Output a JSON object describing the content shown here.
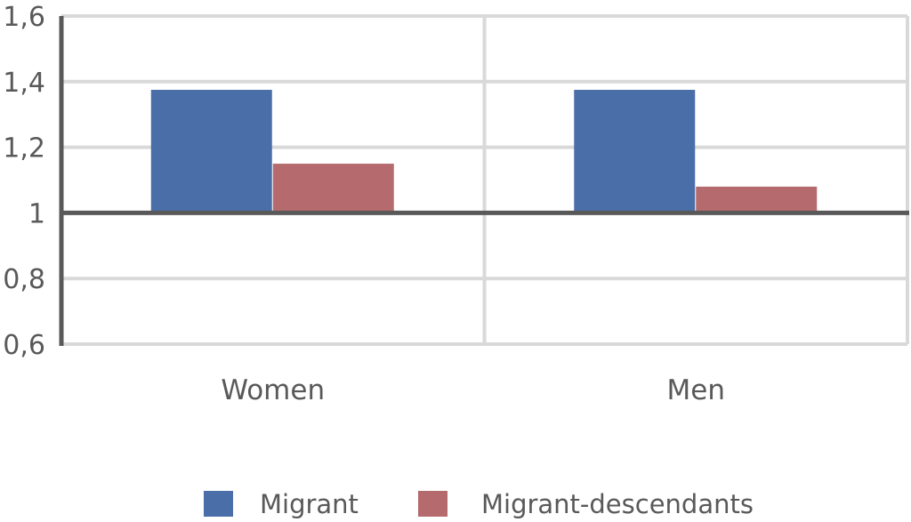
{
  "chart_data": {
    "type": "bar",
    "categories": [
      "Women",
      "Men"
    ],
    "series": [
      {
        "name": "Migrant",
        "values": [
          1.375,
          1.375
        ],
        "color": "#4a6ea8"
      },
      {
        "name": "Migrant-descendants",
        "values": [
          1.15,
          1.08
        ],
        "color": "#b56b6e"
      }
    ],
    "baseline": 1,
    "ylim": [
      0.6,
      1.6
    ],
    "yticks": [
      "0,6",
      "0,8",
      "1",
      "1,2",
      "1,4",
      "1,6"
    ],
    "grid": true,
    "legend_position": "bottom",
    "colors": {
      "grid": "#d9d9d9",
      "axis": "#595959",
      "text": "#595959"
    }
  }
}
